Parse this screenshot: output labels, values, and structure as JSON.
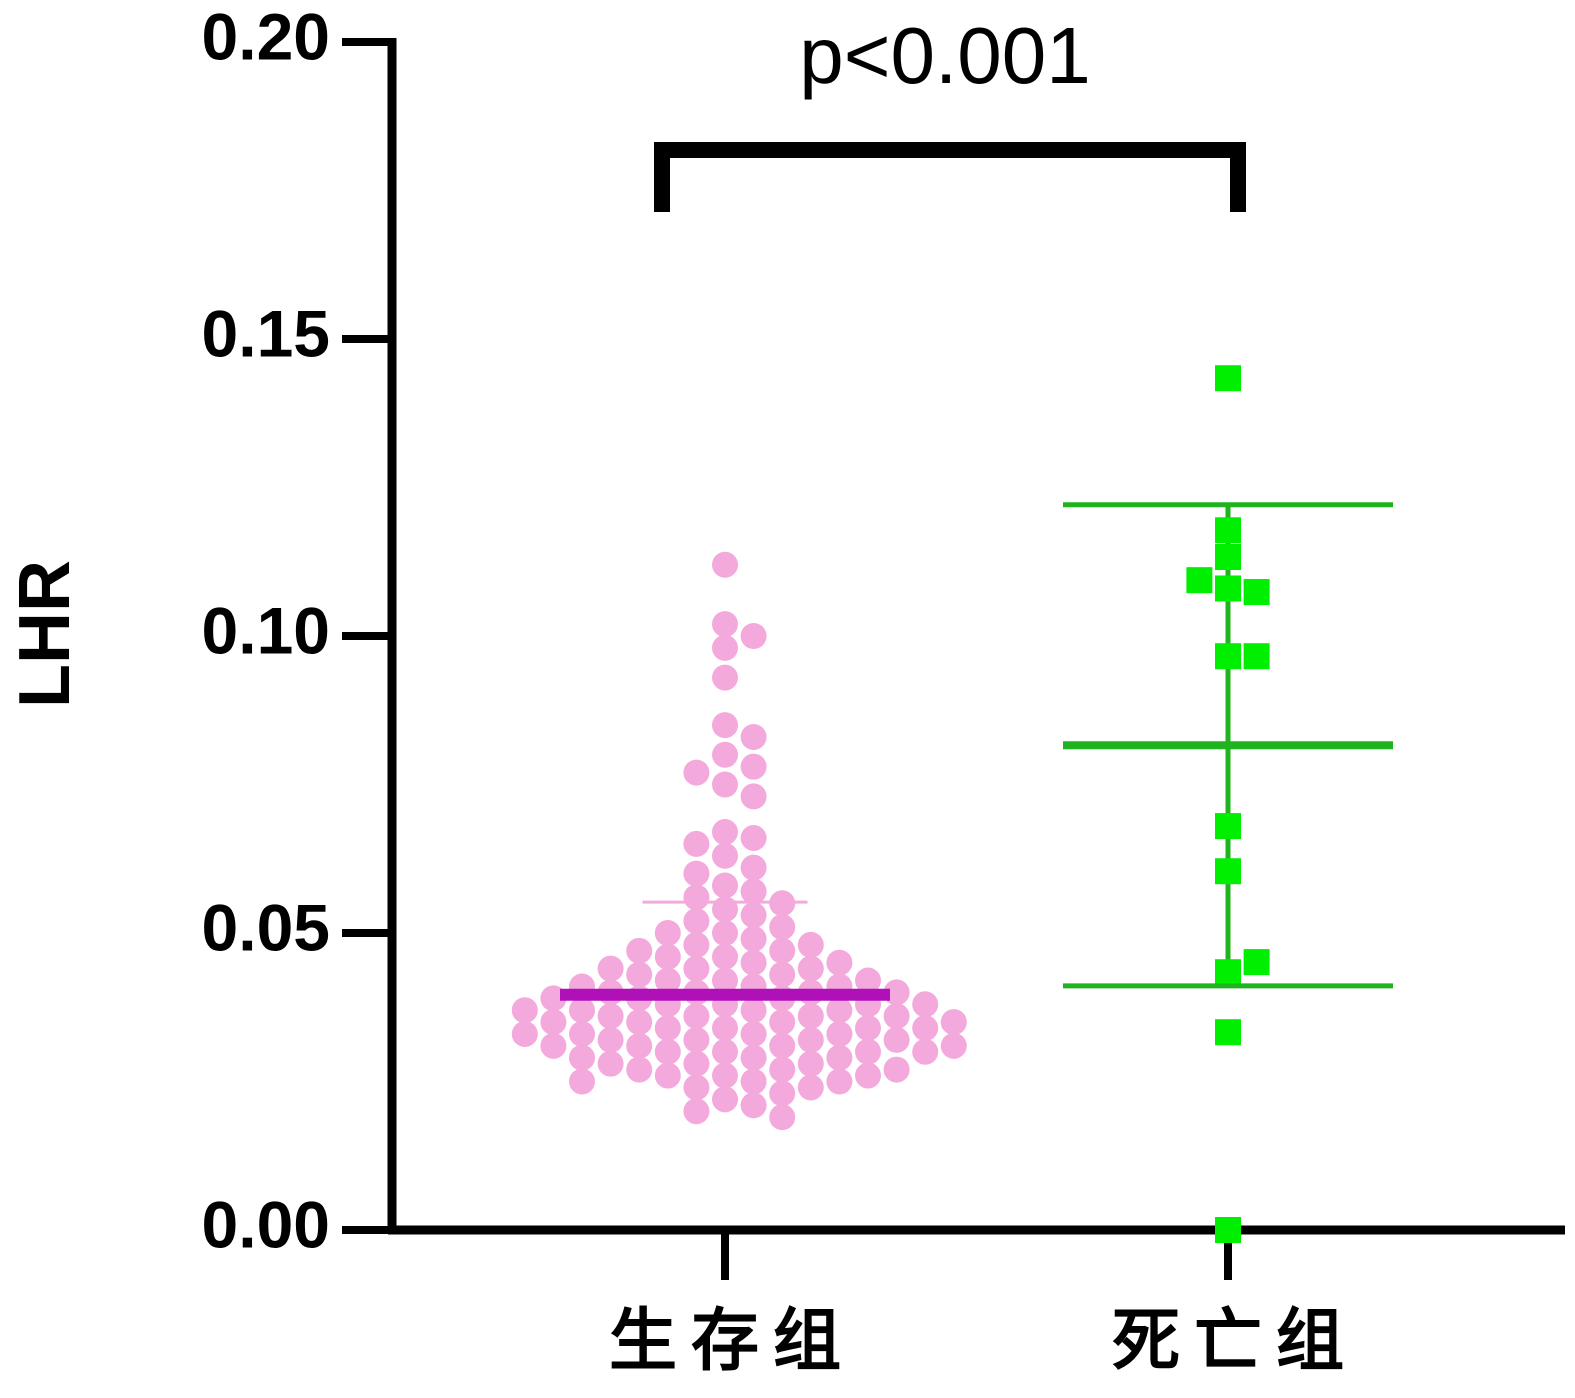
{
  "chart_data": {
    "type": "scatter",
    "annotation": "p<0.001",
    "y_label": "LHR",
    "categories": [
      "生存组",
      "死亡组"
    ],
    "series": [
      {
        "color": "#f4a9dc",
        "marker": "circle",
        "values": [
          0.112,
          0.102,
          0.1,
          0.098,
          0.093,
          0.085,
          0.083,
          0.08,
          0.078,
          0.077,
          0.075,
          0.073,
          0.067,
          0.066,
          0.065,
          0.063,
          0.061,
          0.06,
          0.058,
          0.057,
          0.056,
          0.055,
          0.054,
          0.053,
          0.052,
          0.051,
          0.05,
          0.05,
          0.049,
          0.048,
          0.048,
          0.047,
          0.047,
          0.046,
          0.046,
          0.045,
          0.045,
          0.044,
          0.044,
          0.044,
          0.043,
          0.043,
          0.042,
          0.042,
          0.042,
          0.041,
          0.041,
          0.041,
          0.04,
          0.04,
          0.04,
          0.04,
          0.039,
          0.039,
          0.039,
          0.038,
          0.038,
          0.038,
          0.038,
          0.037,
          0.037,
          0.037,
          0.037,
          0.036,
          0.036,
          0.036,
          0.036,
          0.035,
          0.035,
          0.035,
          0.035,
          0.034,
          0.034,
          0.034,
          0.034,
          0.033,
          0.033,
          0.033,
          0.033,
          0.032,
          0.032,
          0.032,
          0.032,
          0.031,
          0.031,
          0.031,
          0.031,
          0.03,
          0.03,
          0.03,
          0.03,
          0.029,
          0.029,
          0.029,
          0.028,
          0.028,
          0.028,
          0.027,
          0.027,
          0.027,
          0.026,
          0.026,
          0.026,
          0.025,
          0.025,
          0.025,
          0.024,
          0.024,
          0.023,
          0.022,
          0.021,
          0.02,
          0.019
        ]
      },
      {
        "color": "#00ee00",
        "marker": "square",
        "values": [
          0.1434,
          0.1178,
          0.1133,
          0.108,
          0.1074,
          0.1094,
          0.0966,
          0.0966,
          0.068,
          0.0604,
          0.0434,
          0.0451,
          0.0333,
          0
        ]
      }
    ],
    "means": [
      0.0396,
      0.0816
    ],
    "sd": [
      0.0156,
      0.0405
    ],
    "mean_colors": [
      "#b010b8",
      "#1fb31f"
    ],
    "error_colors": [
      "#f4a9dc",
      "#1fb31f"
    ],
    "ylim": [
      0,
      0.2
    ],
    "yticks": [
      {
        "value": 0,
        "label": "0.00"
      },
      0.05,
      {
        "value": 0.1,
        "label": "0.10"
      },
      0.15,
      {
        "value": 0.2,
        "label": "0.20"
      }
    ]
  }
}
